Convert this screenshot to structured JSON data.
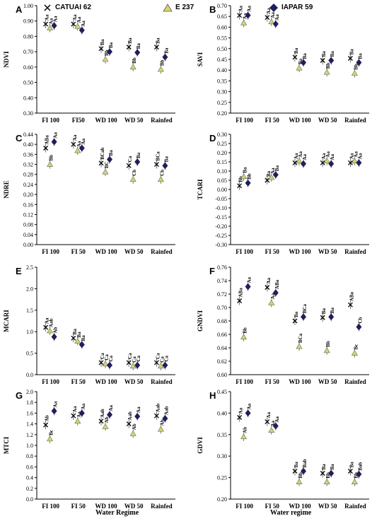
{
  "legend": [
    {
      "name": "CATUAI 62",
      "marker": "x",
      "color": "#000000"
    },
    {
      "name": "E 237",
      "marker": "triangle",
      "color": "#d6d66b"
    },
    {
      "name": "IAPAR 59",
      "marker": "diamond",
      "color": "#1f1f5c"
    }
  ],
  "xtitles": {
    "left": "Water Regime",
    "right": "Water regime"
  },
  "chart_data": [
    {
      "type": "scatter",
      "panel": "A",
      "ylabel": "NDVI",
      "ylim": [
        0.3,
        1.0
      ],
      "yticks": [
        "0.30",
        "0.40",
        "0.50",
        "0.60",
        "0.70",
        "0.80",
        "0.90",
        "1.00"
      ],
      "categories": [
        "FI 100",
        "FI50",
        "WD 100",
        "WD 50",
        "Rainfed"
      ],
      "series": [
        {
          "name": "CATUAI 62",
          "values": [
            0.88,
            0.88,
            0.72,
            0.73,
            0.73
          ]
        },
        {
          "name": "E 237",
          "values": [
            0.855,
            0.865,
            0.65,
            0.6,
            0.585
          ]
        },
        {
          "name": "IAPAR 59",
          "values": [
            0.87,
            0.84,
            0.7,
            0.695,
            0.665
          ]
        }
      ],
      "labels": [
        [
          "Aa",
          "Aa",
          "Aa"
        ],
        [
          "Aa",
          "Aa",
          "Aa"
        ],
        [
          "Ba",
          "Bb",
          "Ba"
        ],
        [
          "Ba",
          "Bb",
          "Ba"
        ],
        [
          "Ba",
          "Bb",
          "Ba"
        ]
      ]
    },
    {
      "type": "scatter",
      "panel": "B",
      "ylabel": "SAVI",
      "ylim": [
        0.2,
        0.7
      ],
      "yticks": [
        "0.20",
        "0.25",
        "0.30",
        "0.35",
        "0.40",
        "0.45",
        "0.50",
        "0.55",
        "0.60",
        "0.65",
        "0.70"
      ],
      "categories": [
        "FI 100",
        "FI 50",
        "WD 100",
        "WD 50",
        "Rainfed"
      ],
      "series": [
        {
          "name": "CATUAI 62",
          "values": [
            0.655,
            0.645,
            0.46,
            0.445,
            0.455
          ]
        },
        {
          "name": "E 237",
          "values": [
            0.62,
            0.625,
            0.41,
            0.39,
            0.385
          ]
        },
        {
          "name": "IAPAR 59",
          "values": [
            0.655,
            0.615,
            0.435,
            0.445,
            0.435
          ]
        }
      ],
      "labels": [
        [
          "Aa",
          "Aa",
          "Aa"
        ],
        [
          "Aa",
          "Aa",
          "Aa"
        ],
        [
          "Ba",
          "Ba",
          "Ba"
        ],
        [
          "Ba",
          "Bb",
          "Ba"
        ],
        [
          "Ba",
          "Bb",
          "Ba"
        ]
      ]
    },
    {
      "type": "scatter",
      "panel": "C",
      "ylabel": "NDRE",
      "ylim": [
        0.0,
        0.44
      ],
      "yticks": [
        "0.00",
        "0.04",
        "0.08",
        "0.12",
        "0.16",
        "0.20",
        "0.24",
        "0.28",
        "0.32",
        "0.36",
        "0.40",
        "0.44"
      ],
      "categories": [
        "FI 100",
        "FI 50",
        "WD 100",
        "WD 50",
        "Rainfed"
      ],
      "series": [
        {
          "name": "CATUAI 62",
          "values": [
            0.385,
            0.4,
            0.325,
            0.315,
            0.32
          ]
        },
        {
          "name": "E 237",
          "values": [
            0.32,
            0.375,
            0.29,
            0.26,
            0.26
          ]
        },
        {
          "name": "IAPAR 59",
          "values": [
            0.41,
            0.385,
            0.34,
            0.33,
            0.315
          ]
        }
      ],
      "labels": [
        [
          "ABa",
          "Bb",
          "Aa"
        ],
        [
          "Aa",
          "Aa",
          "Aa"
        ],
        [
          "BCab",
          "BC",
          "Ba"
        ],
        [
          "Ca",
          "Cb",
          "Ba"
        ],
        [
          "BCa",
          "Cb",
          "Ba"
        ]
      ]
    },
    {
      "type": "scatter",
      "panel": "D",
      "ylabel": "TCARI",
      "ylim": [
        -0.3,
        0.3
      ],
      "yticks": [
        "-0.30",
        "-0.25",
        "-0.20",
        "-0.15",
        "-0.10",
        "-0.05",
        "0.00",
        "0.05",
        "0.10",
        "0.15",
        "0.20",
        "0.25",
        "0.30"
      ],
      "categories": [
        "FI 100",
        "FI 50",
        "WD 100",
        "WD 50",
        "Rainfed"
      ],
      "series": [
        {
          "name": "CATUAI 62",
          "values": [
            0.02,
            0.05,
            0.145,
            0.145,
            0.145
          ]
        },
        {
          "name": "E 237",
          "values": [
            0.07,
            0.065,
            0.155,
            0.155,
            0.155
          ]
        },
        {
          "name": "IAPAR 59",
          "values": [
            0.035,
            0.08,
            0.14,
            0.14,
            0.145
          ]
        }
      ],
      "labels": [
        [
          "Bb",
          "Ba",
          "Bb"
        ],
        [
          "Ba",
          "Aa",
          "Ba"
        ],
        [
          "Aa",
          "Aa",
          "Aa"
        ],
        [
          "Aa",
          "Aa",
          "Aa"
        ],
        [
          "Aa",
          "Aa",
          "Aa"
        ]
      ]
    },
    {
      "type": "scatter",
      "panel": "E",
      "ylabel": "MCARI",
      "ylim": [
        0.0,
        2.5
      ],
      "yticks": [
        "0.0",
        "0.5",
        "1.0",
        "1.5",
        "2.0",
        "2.5"
      ],
      "categories": [
        "FI 100",
        "FI 50",
        "WD 100",
        "WD 50",
        "Rainfed"
      ],
      "series": [
        {
          "name": "CATUAI 62",
          "values": [
            1.1,
            0.85,
            0.28,
            0.28,
            0.28
          ]
        },
        {
          "name": "E 237",
          "values": [
            1.02,
            0.78,
            0.25,
            0.2,
            0.2
          ]
        },
        {
          "name": "IAPAR 59",
          "values": [
            0.88,
            0.7,
            0.22,
            0.22,
            0.22
          ]
        }
      ],
      "labels": [
        [
          "Aa",
          "Aab",
          "Ab"
        ],
        [
          "Ba",
          "Ba",
          "Ba"
        ],
        [
          "Ca",
          "Ca",
          "Ca"
        ],
        [
          "Ca",
          "Ca",
          "Ca"
        ],
        [
          "Ca",
          "Ca",
          "Ca"
        ]
      ]
    },
    {
      "type": "scatter",
      "panel": "F",
      "ylabel": "GNDVI",
      "ylim": [
        0.6,
        0.76
      ],
      "yticks": [
        "0.60",
        "0.62",
        "0.64",
        "0.66",
        "0.68",
        "0.70",
        "0.72",
        "0.74",
        "0.76"
      ],
      "categories": [
        "FI 100",
        "FI 50",
        "WD 100",
        "WD 50",
        "Rainfed"
      ],
      "series": [
        {
          "name": "CATUAI 62",
          "values": [
            0.71,
            0.73,
            0.68,
            0.685,
            0.704
          ]
        },
        {
          "name": "E 237",
          "values": [
            0.656,
            0.707,
            0.642,
            0.636,
            0.632
          ]
        },
        {
          "name": "IAPAR 59",
          "values": [
            0.731,
            0.722,
            0.686,
            0.686,
            0.671
          ]
        }
      ],
      "labels": [
        [
          "ABa",
          "Bb",
          "Aa"
        ],
        [
          "Aa",
          "Aa",
          "ABa"
        ],
        [
          "Ba",
          "BCa",
          "BCa"
        ],
        [
          "Ba",
          "Bb",
          "Ba"
        ],
        [
          "ABa",
          "Bc",
          "Cb"
        ]
      ]
    },
    {
      "type": "scatter",
      "panel": "G",
      "ylabel": "MTCI",
      "ylim": [
        0.0,
        2.0
      ],
      "yticks": [
        "0.0",
        "0.2",
        "0.4",
        "0.6",
        "0.8",
        "1.0",
        "1.2",
        "1.4",
        "1.6",
        "1.8",
        "2.0"
      ],
      "categories": [
        "FI 100",
        "FI 50",
        "WD 100",
        "WD 50",
        "Rainfed"
      ],
      "series": [
        {
          "name": "CATUAI 62",
          "values": [
            1.38,
            1.55,
            1.45,
            1.4,
            1.55
          ]
        },
        {
          "name": "E 237",
          "values": [
            1.12,
            1.45,
            1.35,
            1.22,
            1.3
          ]
        },
        {
          "name": "IAPAR 59",
          "values": [
            1.64,
            1.6,
            1.57,
            1.54,
            1.5
          ]
        }
      ],
      "labels": [
        [
          "Ab",
          "Bc",
          "Aa"
        ],
        [
          "Aa",
          "Aa",
          "Aa"
        ],
        [
          "Aab",
          "Ab",
          "Aa"
        ],
        [
          "Aab",
          "Ab",
          "Aa"
        ],
        [
          "Aab",
          "Ab",
          "Aab"
        ]
      ]
    },
    {
      "type": "scatter",
      "panel": "H",
      "ylabel": "GDVI",
      "ylim": [
        0.2,
        0.45
      ],
      "yticks": [
        "0.20",
        "0.25",
        "0.30",
        "0.35",
        "0.40",
        "0.45"
      ],
      "categories": [
        "FI 100",
        "FI 50",
        "WD 100",
        "WD 50",
        "Rainfed"
      ],
      "series": [
        {
          "name": "CATUAI 62",
          "values": [
            0.39,
            0.38,
            0.265,
            0.26,
            0.265
          ]
        },
        {
          "name": "E 237",
          "values": [
            0.345,
            0.36,
            0.24,
            0.24,
            0.24
          ]
        },
        {
          "name": "IAPAR 59",
          "values": [
            0.4,
            0.37,
            0.265,
            0.26,
            0.258
          ]
        }
      ],
      "labels": [
        [
          "Aa",
          "Ab",
          "Aa"
        ],
        [
          "Aa",
          "Aa",
          "Aa"
        ],
        [
          "Ba",
          "Bb",
          "Bab"
        ],
        [
          "Ba",
          "Bb",
          "Ba"
        ],
        [
          "Ba",
          "Bb",
          "Bab"
        ]
      ]
    }
  ]
}
